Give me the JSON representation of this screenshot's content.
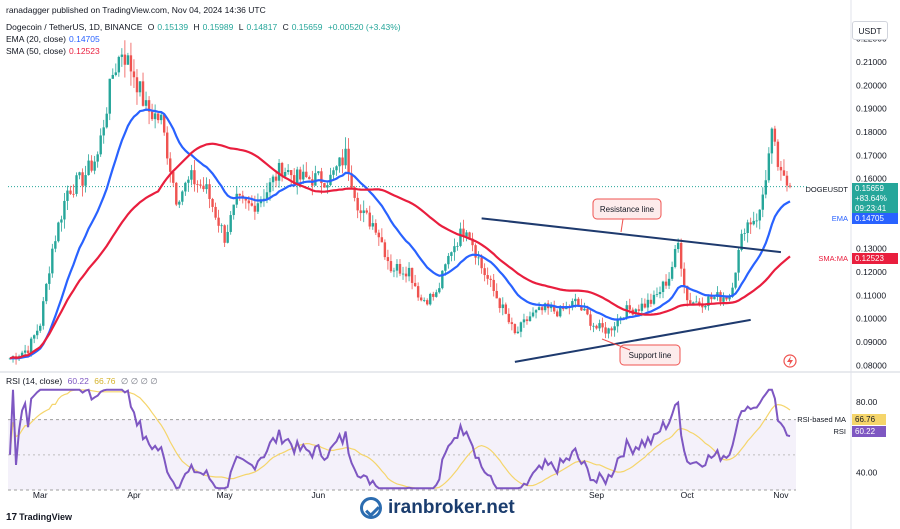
{
  "header": {
    "publisher_line": "ranadagger published on TradingView.com, Nov 04, 2024 14:36 UTC",
    "symbol_line": "Dogecoin / TetherUS, 1D, BINANCE",
    "open_label": "O",
    "open": "0.15139",
    "high_label": "H",
    "high": "0.15989",
    "low_label": "L",
    "low": "0.14817",
    "close_label": "C",
    "close": "0.15659",
    "change": "+0.00520 (+3.43%)",
    "ema_label": "EMA (20, close)",
    "ema_value": "0.14705",
    "sma_label": "SMA (50, close)",
    "sma_value": "0.12523",
    "currency": "USDT"
  },
  "colors": {
    "up": "#26a69a",
    "down": "#ef5350",
    "ema": "#2962ff",
    "sma": "#e91e3e",
    "rsi": "#7e57c2",
    "rsi_ma": "#f5d56b",
    "trendline": "#1e3a6e"
  },
  "chart_data": [
    {
      "type": "candlestick",
      "title": "Dogecoin / TetherUS, 1D, BINANCE",
      "x_tick_labels": [
        "Mar",
        "Apr",
        "May",
        "Jun",
        "Sep",
        "Oct",
        "Nov"
      ],
      "y_tick_labels": [
        "0.22000",
        "0.21000",
        "0.20000",
        "0.19000",
        "0.18000",
        "0.17000",
        "0.16000",
        "0.13000",
        "0.12000",
        "0.11000",
        "0.10000",
        "0.09000",
        "0.08000"
      ],
      "ylim": [
        0.078,
        0.228
      ],
      "price_close_path": {
        "x": [
          "Feb 20",
          "Feb 26",
          "Mar 1",
          "Mar 5",
          "Mar 10",
          "Mar 15",
          "Mar 20",
          "Mar 25",
          "Mar 28",
          "Apr 1",
          "Apr 5",
          "Apr 10",
          "Apr 15",
          "Apr 20",
          "Apr 25",
          "May 1",
          "May 5",
          "May 10",
          "May 15",
          "May 20",
          "May 25",
          "Jun 1",
          "Jun 5",
          "Jun 10",
          "Jun 15",
          "Jun 20",
          "Jun 25",
          "Jul 1",
          "Jul 5",
          "Jul 10",
          "Jul 15",
          "Jul 20",
          "Jul 25",
          "Aug 1",
          "Aug 5",
          "Aug 10",
          "Aug 15",
          "Aug 20",
          "Aug 25",
          "Sep 1",
          "Sep 5",
          "Sep 10",
          "Sep 15",
          "Sep 20",
          "Sep 25",
          "Sep 28",
          "Oct 1",
          "Oct 5",
          "Oct 10",
          "Oct 15",
          "Oct 20",
          "Oct 25",
          "Oct 29",
          "Nov 1",
          "Nov 4"
        ],
        "y": [
          0.083,
          0.087,
          0.098,
          0.13,
          0.155,
          0.16,
          0.17,
          0.205,
          0.215,
          0.205,
          0.19,
          0.185,
          0.152,
          0.16,
          0.155,
          0.135,
          0.15,
          0.148,
          0.155,
          0.165,
          0.16,
          0.16,
          0.16,
          0.17,
          0.145,
          0.14,
          0.122,
          0.121,
          0.108,
          0.11,
          0.13,
          0.14,
          0.122,
          0.104,
          0.093,
          0.101,
          0.104,
          0.103,
          0.107,
          0.096,
          0.095,
          0.103,
          0.105,
          0.108,
          0.118,
          0.132,
          0.108,
          0.107,
          0.109,
          0.11,
          0.14,
          0.145,
          0.178,
          0.16,
          0.15659
        ]
      },
      "ema20": {
        "label": "EMA",
        "value": 0.14705
      },
      "sma50": {
        "label": "SMA:MA",
        "value": 0.12523
      },
      "price_label": {
        "symbol": "DOGEUSDT",
        "price": "0.15659",
        "change_pct": "+83.64%",
        "countdown": "09:23:41"
      },
      "annotations": [
        {
          "label": "Resistance line",
          "type": "trendline",
          "from": [
            "Jul 25",
            0.143
          ],
          "to": [
            "Nov 1",
            0.1285
          ]
        },
        {
          "label": "Support line",
          "type": "trendline",
          "from": [
            "Aug 5",
            0.0815
          ],
          "to": [
            "Oct 22",
            0.0995
          ]
        }
      ]
    },
    {
      "type": "line",
      "title": "RSI (14, close)",
      "header_values": [
        "60.22",
        "66.76"
      ],
      "header_extra": [
        "∅",
        "∅",
        "∅",
        "∅"
      ],
      "y_tick_labels": [
        "80.00",
        "40.00"
      ],
      "ylim": [
        30,
        88
      ],
      "band": [
        30,
        70
      ],
      "series": [
        {
          "name": "RSI",
          "value": "60.22"
        },
        {
          "name": "RSI-based MA",
          "value": "66.76"
        }
      ]
    }
  ],
  "watermark": "iranbroker.net",
  "branding": "TradingView"
}
